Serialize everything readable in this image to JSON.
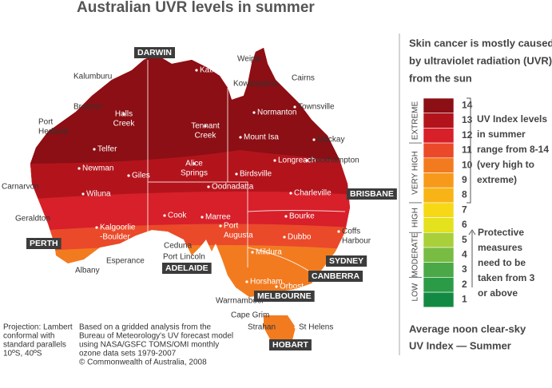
{
  "title": "Australian UVR levels in summer",
  "map": {
    "places": [
      [
        "Kalumburu"
      ],
      [
        "Katherine"
      ],
      [
        "Weipa"
      ],
      [
        "Kowanyama"
      ],
      [
        "Cairns"
      ],
      [
        "Broome"
      ],
      [
        "Halls",
        "Creek"
      ],
      [
        "Port",
        "Hedland"
      ],
      [
        "Normanton"
      ],
      [
        "Townsville"
      ],
      [
        "Tennant",
        "Creek"
      ],
      [
        "Mount Isa"
      ],
      [
        "Mackay"
      ],
      [
        "Telfer"
      ],
      [
        "Longreach"
      ],
      [
        "Rockhampton"
      ],
      [
        "Newman"
      ],
      [
        "Giles"
      ],
      [
        "Alice",
        "Springs"
      ],
      [
        "Birdsville"
      ],
      [
        "Carnarvon"
      ],
      [
        "Oodnadatta"
      ],
      [
        "Charleville"
      ],
      [
        "Wiluna"
      ],
      [
        "Geraldton"
      ],
      [
        "Cook"
      ],
      [
        "Marree"
      ],
      [
        "Bourke"
      ],
      [
        "Port",
        "Augusta"
      ],
      [
        "Coffs",
        "Harbour"
      ],
      [
        "Kalgoorlie",
        "-Boulder"
      ],
      [
        "Dubbo"
      ],
      [
        "Ceduna"
      ],
      [
        "Esperance"
      ],
      [
        "Port Lincoln"
      ],
      [
        "Mildura"
      ],
      [
        "Albany"
      ],
      [
        "Horsham"
      ],
      [
        "Orbost"
      ],
      [
        "Warrnambool"
      ],
      [
        "Cape Grim"
      ],
      [
        "Strahan"
      ],
      [
        "St Helens"
      ]
    ],
    "capitals": [
      "DARWIN",
      "BRISBANE",
      "PERTH",
      "SYDNEY",
      "ADELAIDE",
      "CANBERRA",
      "MELBOURNE",
      "HOBART"
    ]
  },
  "notes": {
    "projection": [
      "Projection: Lambert",
      "conformal with",
      "standard parallels",
      "10ºS, 40ºS"
    ],
    "source": [
      "Based on a gridded analysis from the",
      "Bureau of Meteorology's UV forecast model",
      "using NASA/GSFC TOMS/OMI monthly",
      "ozone data sets 1979-2007",
      "© Commonwealth of Australia, 2008"
    ]
  },
  "legend": {
    "heading": [
      "Skin cancer is mostly caused",
      "by ultraviolet radiation (UVR)",
      "from the sun"
    ],
    "levels": [
      {
        "value": 14,
        "color": "#8b0f14"
      },
      {
        "value": 13,
        "color": "#b3141c"
      },
      {
        "value": 12,
        "color": "#d7202a"
      },
      {
        "value": 11,
        "color": "#ea4a2a"
      },
      {
        "value": 10,
        "color": "#f27b20"
      },
      {
        "value": 9,
        "color": "#f79a1b"
      },
      {
        "value": 8,
        "color": "#f8b417"
      },
      {
        "value": 7,
        "color": "#f6d816"
      },
      {
        "value": 6,
        "color": "#e3e21c"
      },
      {
        "value": 5,
        "color": "#a9cf3a"
      },
      {
        "value": 4,
        "color": "#78bc43"
      },
      {
        "value": 3,
        "color": "#4aa946"
      },
      {
        "value": 2,
        "color": "#2b9b47"
      },
      {
        "value": 1,
        "color": "#138a43"
      }
    ],
    "categories": [
      "EXTREME",
      "VERY HIGH",
      "HIGH",
      "MODERATE",
      "LOW"
    ],
    "range_note": [
      "UV Index levels",
      "in summer",
      "range from 8-14",
      "(very high to",
      "extreme)"
    ],
    "protect_note": [
      "Protective",
      "measures",
      "need to be",
      "taken from 3",
      "or above"
    ],
    "caption": [
      "Average noon clear-sky",
      "UV Index — Summer"
    ]
  }
}
